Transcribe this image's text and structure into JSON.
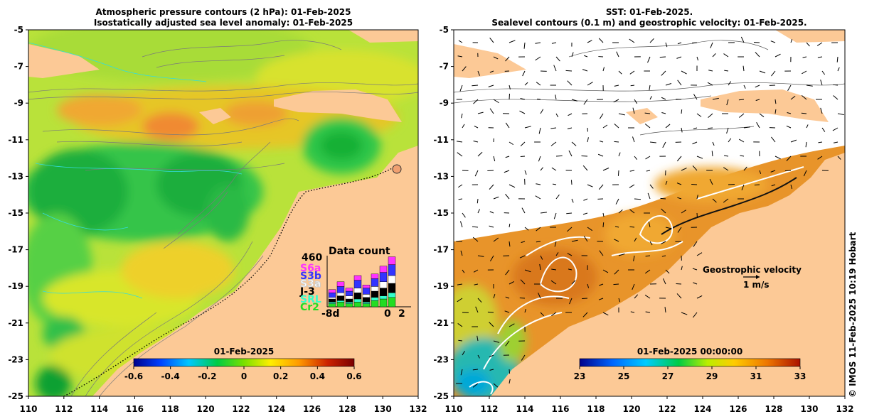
{
  "left_panel": {
    "title_line1": "Atmospheric pressure contours (2 hPa): 01-Feb-2025",
    "title_line2": "Isostatically adjusted sea level anomaly: 01-Feb-2025",
    "colorbar_title": "01-Feb-2025",
    "colorbar_ticks": [
      "-0.6",
      "-0.4",
      "-0.2",
      "0",
      "0.2",
      "0.4",
      "0.6"
    ],
    "data_count": {
      "title": "Data count",
      "max_label": "460",
      "x_start": "-8d",
      "x_mid": "0",
      "x_end": "2",
      "missions": [
        {
          "name": "S6a",
          "color": "#ff33ff"
        },
        {
          "name": "S3b",
          "color": "#3333ff"
        },
        {
          "name": "S3a",
          "color": "#ffffff"
        },
        {
          "name": "J-3",
          "color": "#000000"
        },
        {
          "name": "SRL",
          "color": "#33ffcc"
        },
        {
          "name": "Cr2",
          "color": "#22dd22"
        }
      ]
    }
  },
  "right_panel": {
    "title_line1": "SST: 01-Feb-2025.",
    "title_line2": "Sealevel contours (0.1 m) and geostrophic velocity: 01-Feb-2025.",
    "colorbar_title": "01-Feb-2025 00:00:00",
    "colorbar_ticks": [
      "23",
      "25",
      "27",
      "29",
      "31",
      "33"
    ],
    "velocity_label": "Geostrophic velocity",
    "velocity_scale": "1 m/s"
  },
  "axes": {
    "lat_ticks": [
      "-5",
      "-7",
      "-9",
      "-11",
      "-13",
      "-15",
      "-17",
      "-19",
      "-21",
      "-23",
      "-25"
    ],
    "lon_ticks": [
      "110",
      "112",
      "114",
      "116",
      "118",
      "120",
      "122",
      "124",
      "126",
      "128",
      "130",
      "132"
    ]
  },
  "credit": "© IMOS 11-Feb-2025 10:19 Hobart",
  "colors": {
    "land": "#fcc996",
    "sla_scale": [
      "#00008c",
      "#0040ff",
      "#00c8ff",
      "#00cc44",
      "#7ae000",
      "#ffee00",
      "#ff9900",
      "#cc2200",
      "#7a0000"
    ],
    "sst_scale": [
      "#00008c",
      "#0066ff",
      "#00ccff",
      "#00cc44",
      "#bbee00",
      "#ffcc00",
      "#ee7700",
      "#aa1100"
    ]
  }
}
